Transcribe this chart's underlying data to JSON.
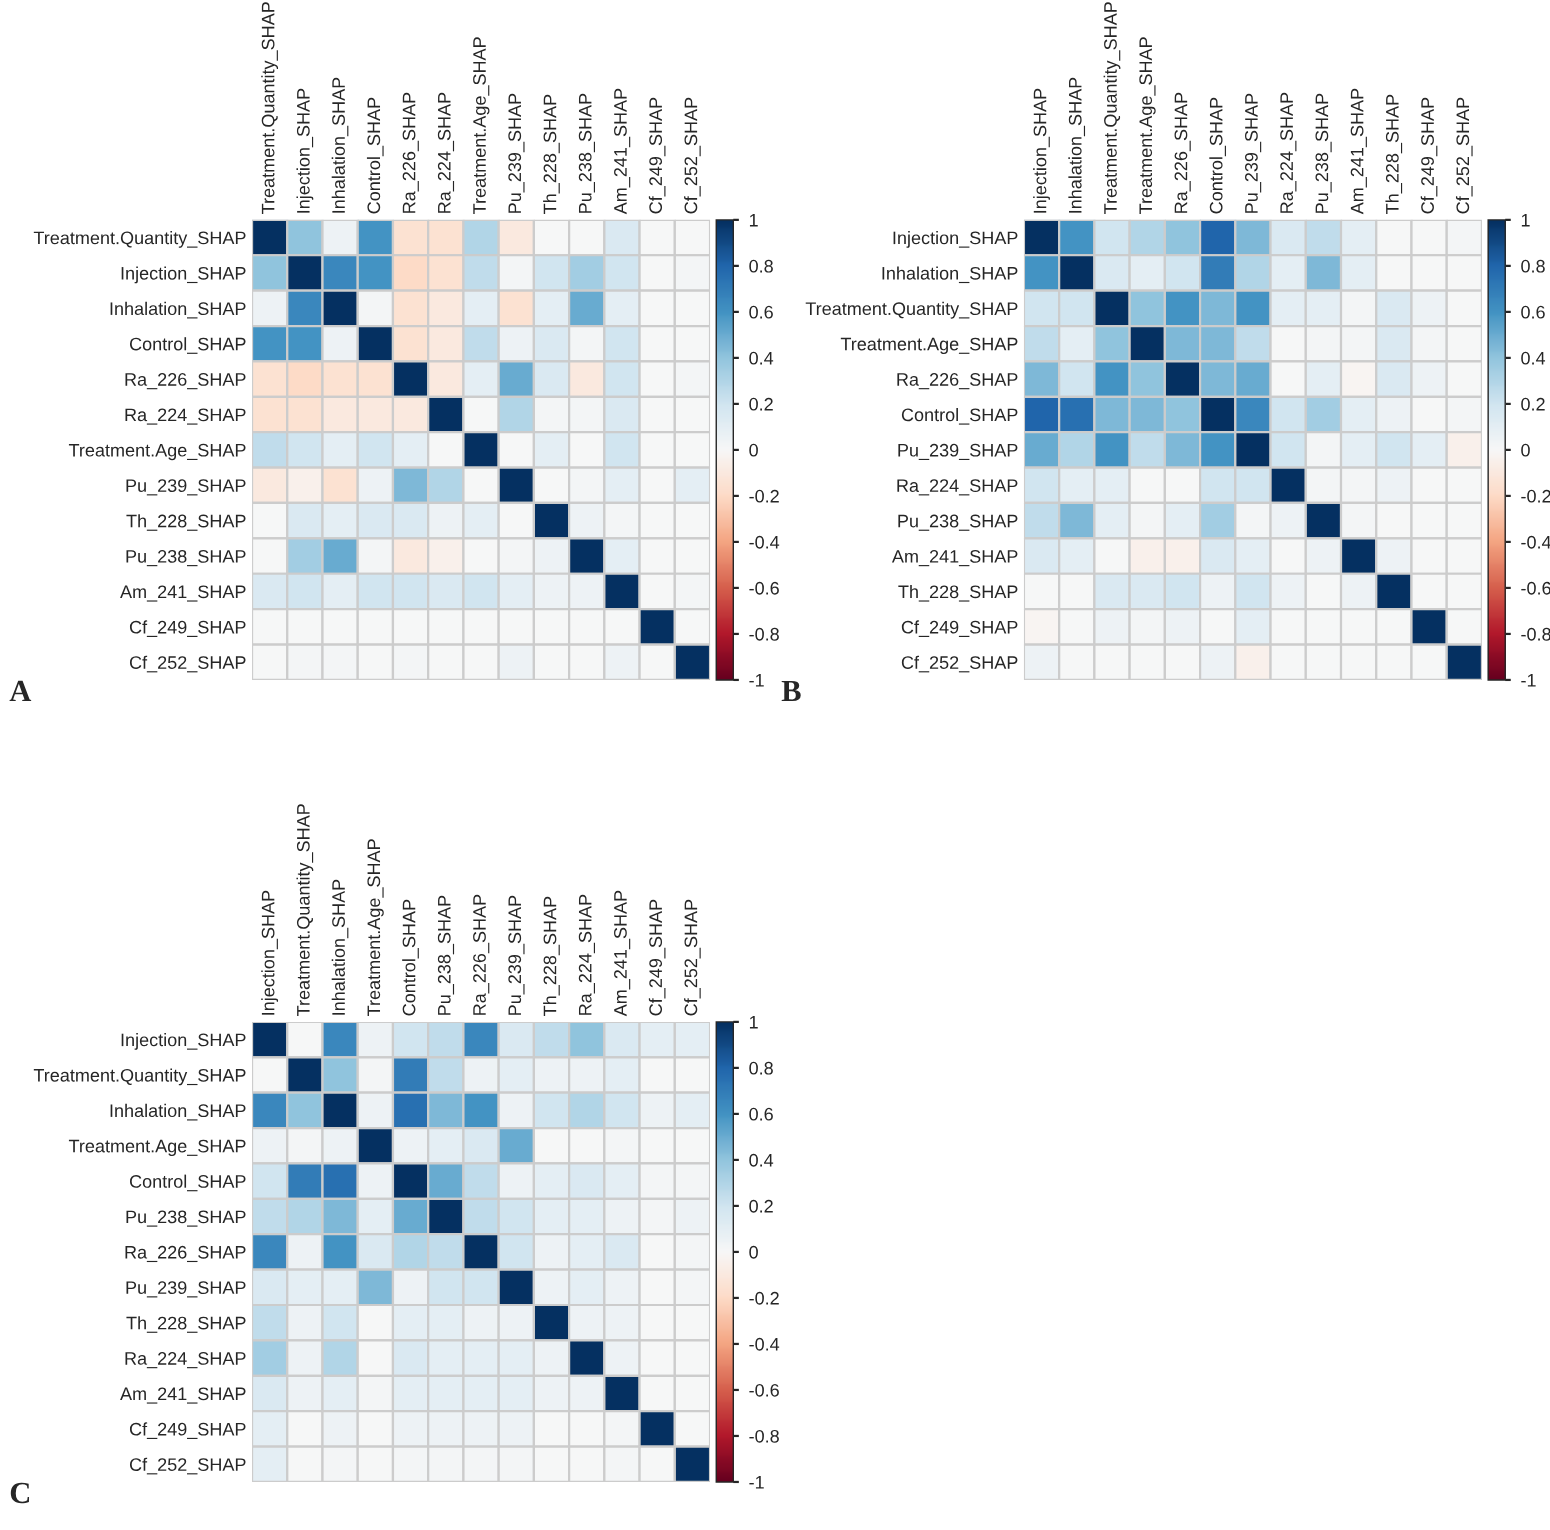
{
  "chart_data": [
    {
      "type": "heatmap",
      "annotations": [
        "A"
      ],
      "categories": [
        "Treatment.Quantity_SHAP",
        "Injection_SHAP",
        "Inhalation_SHAP",
        "Control_SHAP",
        "Ra_226_SHAP",
        "Ra_224_SHAP",
        "Treatment.Age_SHAP",
        "Pu_239_SHAP",
        "Th_228_SHAP",
        "Pu_238_SHAP",
        "Am_241_SHAP",
        "Cf_249_SHAP",
        "Cf_252_SHAP"
      ],
      "y_categories": [
        "Treatment.Quantity_SHAP",
        "Injection_SHAP",
        "Inhalation_SHAP",
        "Control_SHAP",
        "Ra_226_SHAP",
        "Ra_224_SHAP",
        "Treatment.Age_SHAP",
        "Pu_239_SHAP",
        "Th_228_SHAP",
        "Pu_238_SHAP",
        "Am_241_SHAP",
        "Cf_249_SHAP",
        "Cf_252_SHAP"
      ],
      "cells": [
        [
          1,
          0.4,
          0.05,
          0.6,
          -0.15,
          -0.15,
          0.3,
          -0.1,
          0,
          0,
          0.15,
          0,
          0
        ],
        [
          0.4,
          1,
          0.65,
          0.6,
          -0.2,
          -0.15,
          0.25,
          0.02,
          0.2,
          0.35,
          0.2,
          0,
          0.02
        ],
        [
          0.05,
          0.65,
          1,
          0.02,
          -0.15,
          -0.1,
          0.1,
          -0.15,
          0.1,
          0.5,
          0.1,
          0,
          0
        ],
        [
          0.6,
          0.6,
          0.05,
          1,
          -0.15,
          -0.1,
          0.25,
          0.05,
          0.15,
          0.02,
          0.2,
          0,
          0
        ],
        [
          -0.15,
          -0.2,
          -0.15,
          -0.15,
          1,
          -0.1,
          0.1,
          0.5,
          0.15,
          -0.1,
          0.2,
          0,
          0.02
        ],
        [
          -0.15,
          -0.15,
          -0.1,
          -0.1,
          -0.1,
          1,
          0,
          0.3,
          0.02,
          0.02,
          0.15,
          0,
          0
        ],
        [
          0.25,
          0.2,
          0.1,
          0.2,
          0.1,
          0,
          1,
          0,
          0.1,
          0,
          0.2,
          0,
          0
        ],
        [
          -0.1,
          -0.05,
          -0.15,
          0.05,
          0.45,
          0.3,
          0,
          1,
          0,
          0.02,
          0.1,
          0,
          0.1
        ],
        [
          0,
          0.15,
          0.1,
          0.15,
          0.15,
          0.05,
          0.1,
          0,
          1,
          0.05,
          0.02,
          0,
          0
        ],
        [
          0,
          0.35,
          0.5,
          0.02,
          -0.1,
          -0.05,
          0,
          0.02,
          0.05,
          1,
          0.1,
          0,
          0
        ],
        [
          0.15,
          0.2,
          0.1,
          0.2,
          0.2,
          0.15,
          0.2,
          0.1,
          0.05,
          0.05,
          1,
          0,
          0.02
        ],
        [
          0,
          0,
          0,
          0,
          0,
          0,
          0,
          0,
          0,
          0,
          0,
          1,
          0
        ],
        [
          0,
          0.02,
          0.02,
          0,
          0.02,
          0,
          0,
          0.05,
          0,
          0,
          0.05,
          0,
          1
        ]
      ],
      "clim": [
        -1,
        1
      ],
      "cticks": [
        -1,
        -0.8,
        -0.6,
        -0.4,
        -0.2,
        0,
        0.2,
        0.4,
        0.6,
        0.8,
        1
      ]
    },
    {
      "type": "heatmap",
      "annotations": [
        "B"
      ],
      "categories": [
        "Injection_SHAP",
        "Inhalation_SHAP",
        "Treatment.Quantity_SHAP",
        "Treatment.Age_SHAP",
        "Ra_226_SHAP",
        "Control_SHAP",
        "Pu_239_SHAP",
        "Ra_224_SHAP",
        "Pu_238_SHAP",
        "Am_241_SHAP",
        "Th_228_SHAP",
        "Cf_249_SHAP",
        "Cf_252_SHAP"
      ],
      "y_categories": [
        "Injection_SHAP",
        "Inhalation_SHAP",
        "Treatment.Quantity_SHAP",
        "Treatment.Age_SHAP",
        "Ra_226_SHAP",
        "Control_SHAP",
        "Pu_239_SHAP",
        "Ra_224_SHAP",
        "Pu_238_SHAP",
        "Am_241_SHAP",
        "Th_228_SHAP",
        "Cf_249_SHAP",
        "Cf_252_SHAP"
      ],
      "cells": [
        [
          1,
          0.6,
          0.2,
          0.3,
          0.4,
          0.8,
          0.45,
          0.15,
          0.25,
          0.1,
          0,
          0,
          0.02
        ],
        [
          0.6,
          1,
          0.15,
          0.1,
          0.2,
          0.7,
          0.3,
          0.1,
          0.45,
          0.1,
          0,
          0,
          0
        ],
        [
          0.2,
          0.2,
          1,
          0.4,
          0.6,
          0.45,
          0.6,
          0.1,
          0.1,
          0.02,
          0.15,
          0.05,
          0
        ],
        [
          0.25,
          0.1,
          0.4,
          1,
          0.45,
          0.45,
          0.25,
          0,
          0.02,
          0.02,
          0.15,
          0.02,
          0
        ],
        [
          0.45,
          0.2,
          0.6,
          0.4,
          1,
          0.45,
          0.5,
          0,
          0.1,
          -0.02,
          0.15,
          0.05,
          0
        ],
        [
          0.8,
          0.75,
          0.45,
          0.45,
          0.4,
          1,
          0.65,
          0.2,
          0.35,
          0.1,
          0.05,
          0,
          0.02
        ],
        [
          0.5,
          0.3,
          0.6,
          0.25,
          0.45,
          0.6,
          1,
          0.2,
          0.02,
          0.1,
          0.2,
          0.1,
          -0.05
        ],
        [
          0.2,
          0.1,
          0.1,
          0,
          0,
          0.2,
          0.2,
          1,
          0.02,
          0.02,
          0.05,
          0,
          0
        ],
        [
          0.25,
          0.45,
          0.1,
          0.02,
          0.1,
          0.35,
          0.02,
          0.05,
          1,
          0.02,
          0,
          0,
          0
        ],
        [
          0.15,
          0.1,
          0,
          -0.05,
          -0.05,
          0.15,
          0.1,
          0,
          0.05,
          1,
          0.05,
          0,
          0
        ],
        [
          0,
          0,
          0.15,
          0.15,
          0.2,
          0.05,
          0.2,
          0.05,
          0,
          0.05,
          1,
          0,
          0
        ],
        [
          -0.02,
          0,
          0.05,
          0.02,
          0.05,
          0,
          0.1,
          0,
          0,
          0,
          0,
          1,
          0
        ],
        [
          0.05,
          0,
          0,
          0,
          0,
          0.05,
          -0.05,
          0,
          0,
          0,
          0,
          0,
          1
        ]
      ],
      "clim": [
        -1,
        1
      ],
      "cticks": [
        -1,
        -0.8,
        -0.6,
        -0.4,
        -0.2,
        0,
        0.2,
        0.4,
        0.6,
        0.8,
        1
      ]
    },
    {
      "type": "heatmap",
      "annotations": [
        "C"
      ],
      "categories": [
        "Injection_SHAP",
        "Treatment.Quantity_SHAP",
        "Inhalation_SHAP",
        "Treatment.Age_SHAP",
        "Control_SHAP",
        "Pu_238_SHAP",
        "Ra_226_SHAP",
        "Pu_239_SHAP",
        "Th_228_SHAP",
        "Ra_224_SHAP",
        "Am_241_SHAP",
        "Cf_249_SHAP",
        "Cf_252_SHAP"
      ],
      "y_categories": [
        "Injection_SHAP",
        "Treatment.Quantity_SHAP",
        "Inhalation_SHAP",
        "Treatment.Age_SHAP",
        "Control_SHAP",
        "Pu_238_SHAP",
        "Ra_226_SHAP",
        "Pu_239_SHAP",
        "Th_228_SHAP",
        "Ra_224_SHAP",
        "Am_241_SHAP",
        "Cf_249_SHAP",
        "Cf_252_SHAP"
      ],
      "cells": [
        [
          1,
          0,
          0.65,
          0.05,
          0.2,
          0.25,
          0.65,
          0.15,
          0.25,
          0.4,
          0.15,
          0.1,
          0.1
        ],
        [
          0,
          1,
          0.4,
          0.02,
          0.7,
          0.25,
          0.05,
          0.1,
          0.05,
          0.05,
          0.1,
          0,
          0
        ],
        [
          0.65,
          0.4,
          1,
          0.05,
          0.75,
          0.45,
          0.6,
          0.05,
          0.2,
          0.3,
          0.2,
          0.05,
          0.1
        ],
        [
          0.05,
          0.02,
          0.05,
          1,
          0.05,
          0.1,
          0.15,
          0.5,
          0,
          0,
          0.02,
          0,
          0
        ],
        [
          0.2,
          0.7,
          0.75,
          0.05,
          1,
          0.5,
          0.25,
          0.05,
          0.1,
          0.15,
          0.1,
          0.02,
          0.02
        ],
        [
          0.25,
          0.3,
          0.45,
          0.1,
          0.5,
          1,
          0.25,
          0.2,
          0.1,
          0.1,
          0.05,
          0.02,
          0.05
        ],
        [
          0.65,
          0.05,
          0.6,
          0.15,
          0.3,
          0.25,
          1,
          0.2,
          0.05,
          0.1,
          0.15,
          0,
          0.02
        ],
        [
          0.15,
          0.1,
          0.1,
          0.45,
          0.05,
          0.2,
          0.2,
          1,
          0.05,
          0.1,
          0.05,
          0,
          0.02
        ],
        [
          0.25,
          0.05,
          0.2,
          0,
          0.1,
          0.1,
          0.05,
          0.05,
          1,
          0.05,
          0.05,
          0,
          0
        ],
        [
          0.35,
          0.05,
          0.3,
          0,
          0.15,
          0.1,
          0.1,
          0.1,
          0.05,
          1,
          0.05,
          0,
          0
        ],
        [
          0.15,
          0.05,
          0.1,
          0.02,
          0.1,
          0.1,
          0.1,
          0.1,
          0.05,
          0.05,
          1,
          0,
          0
        ],
        [
          0.1,
          0,
          0.05,
          0,
          0.05,
          0.05,
          0.05,
          0.05,
          0,
          0,
          0.02,
          1,
          0
        ],
        [
          0.1,
          0,
          0.02,
          0,
          0.02,
          0.02,
          0.02,
          0.02,
          0,
          0,
          0.02,
          0,
          1
        ]
      ],
      "clim": [
        -1,
        1
      ],
      "cticks": [
        -1,
        -0.8,
        -0.6,
        -0.4,
        -0.2,
        0,
        0.2,
        0.4,
        0.6,
        0.8,
        1
      ]
    }
  ]
}
